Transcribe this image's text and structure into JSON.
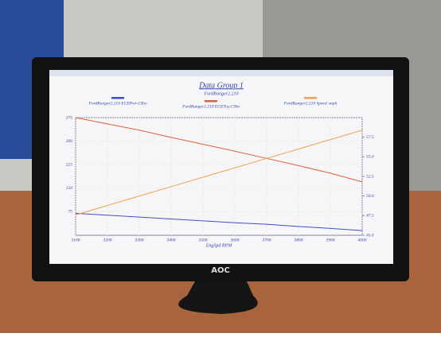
{
  "chart_data": {
    "type": "line",
    "title": "Data Group 1",
    "subtitle": "FordRanger2.210",
    "x_label": "EngSpd RPM",
    "brand": "AOC",
    "x": [
      3100,
      3200,
      3300,
      3400,
      3500,
      3600,
      3700,
      3800,
      3900,
      4000
    ],
    "xlim": [
      3100,
      4000
    ],
    "xticks": [
      3100,
      3200,
      3300,
      3400,
      3500,
      3600,
      3700,
      3800,
      3900,
      4000
    ],
    "ylim": [
      0,
      375
    ],
    "yticks": [
      75,
      150,
      225,
      300,
      375
    ],
    "y2lim": [
      45,
      60
    ],
    "y2ticks": [
      {
        "value": 45,
        "label": "45.0"
      },
      {
        "value": 47.5,
        "label": "47.5"
      },
      {
        "value": 50,
        "label": "50.0"
      },
      {
        "value": 52.5,
        "label": "52.5"
      },
      {
        "value": 55,
        "label": "55.0"
      },
      {
        "value": 57.5,
        "label": "57.5"
      }
    ],
    "grid": true,
    "series": [
      {
        "name": "FordRanger2.210 ECEPwr-CKw",
        "color": "#3b4fd0",
        "values": [
          70,
          64,
          58,
          52,
          46,
          40,
          35,
          28,
          22,
          15
        ]
      },
      {
        "name": "FordRanger2.210 ECETrq-CNm",
        "color": "#e0603a",
        "values": [
          375,
          355,
          335,
          312,
          290,
          268,
          245,
          222,
          198,
          170
        ]
      },
      {
        "name": "FordRanger2.210 Speed -mph",
        "color": "#f0a050",
        "axis": "y2",
        "values": [
          47.6,
          48.8,
          50.0,
          51.2,
          52.4,
          53.6,
          54.8,
          56.0,
          57.2,
          58.4
        ]
      }
    ]
  }
}
